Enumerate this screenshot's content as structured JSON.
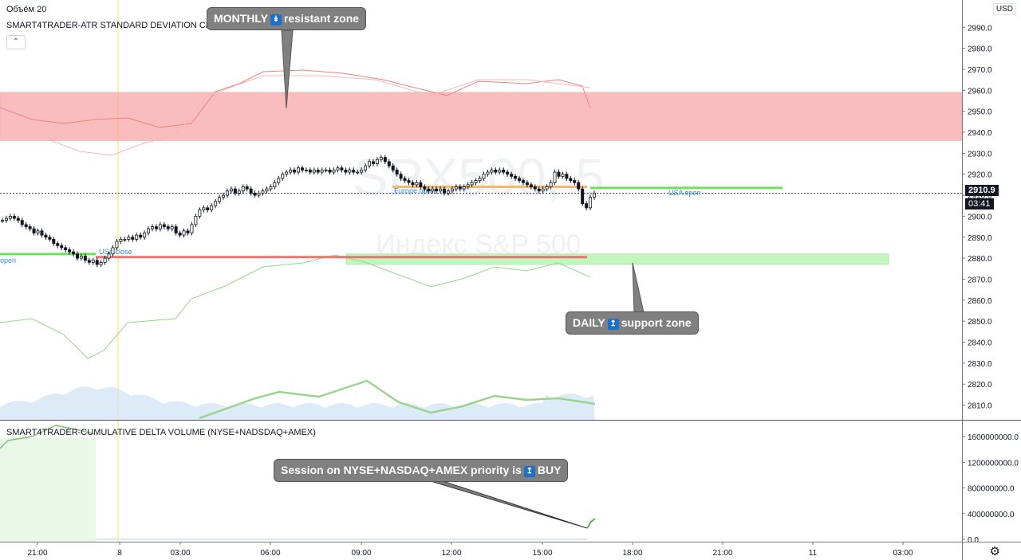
{
  "legend": {
    "volume": "Объём 20",
    "indicator": "SMART4TRADER-ATR STANDARD DEVIATION CHART v. 18 Day",
    "delta": "SMART4TRADER-CUMULATIVE DELTA VOLUME (NYSE+NADSDAQ+AMEX)"
  },
  "currency": "USD",
  "watermark": {
    "symbol": "SPX500, 5",
    "name": "Индекс S&P 500"
  },
  "last_price": {
    "value": "2910.9",
    "countdown": "03:41"
  },
  "callouts": {
    "monthly": {
      "pre": "MONTHLY",
      "arrow": "↡",
      "post": "resistant zone"
    },
    "daily": {
      "pre": "DAILY",
      "arrow": "↥",
      "post": "support zone"
    },
    "session": {
      "pre": "Session on NYSE+NASDAQ+AMEX priority is",
      "arrow": "↥",
      "post": "BUY"
    }
  },
  "level_labels": {
    "usa_open": "USA open",
    "usa_close": "USA close",
    "europe_open": "Europe open",
    "open_left": "open"
  },
  "colors": {
    "resistance_zone": "#f7a7a7",
    "support_zone": "#b9f4b4",
    "green_level": "#6ee05a",
    "red_level": "#ec7372",
    "orange_level": "#f5b969",
    "candle": "#131722",
    "session_line": "#ffe74a",
    "volume_fill": "#cfe3f5"
  },
  "chart_data": {
    "type": "candlestick",
    "price_axis": {
      "range": [
        2803,
        3003
      ],
      "ticks": [
        "2990.0",
        "2980.0",
        "2970.0",
        "2960.0",
        "2950.0",
        "2940.0",
        "2930.0",
        "2920.0",
        "2910.0",
        "2900.0",
        "2890.0",
        "2880.0",
        "2870.0",
        "2860.0",
        "2850.0",
        "2840.0",
        "2830.0",
        "2820.0",
        "2810.0"
      ]
    },
    "time_axis": {
      "ticks": [
        "21:00",
        "8",
        "03:00",
        "06:00",
        "09:00",
        "12:00",
        "15:00",
        "18:00",
        "21:00",
        "11",
        "03:00"
      ]
    },
    "zones": {
      "monthly_resistance": [
        2936,
        2959
      ],
      "daily_support": [
        2877,
        2882
      ]
    },
    "levels": {
      "usa_open": 2913.5,
      "usa_close": 2880.5,
      "europe_open": 2914,
      "last": 2910.9
    },
    "close_series": [
      2898,
      2899,
      2900,
      2899,
      2898,
      2896,
      2895,
      2894,
      2892,
      2893,
      2891,
      2890,
      2889,
      2887,
      2886,
      2885,
      2884,
      2883,
      2882,
      2880,
      2881,
      2879,
      2878,
      2879,
      2877,
      2878,
      2880,
      2882,
      2885,
      2888,
      2889,
      2889,
      2890,
      2889,
      2891,
      2890,
      2892,
      2894,
      2895,
      2894,
      2896,
      2895,
      2894,
      2895,
      2892,
      2891,
      2893,
      2892,
      2896,
      2900,
      2903,
      2904,
      2903,
      2905,
      2907,
      2909,
      2910,
      2912,
      2913,
      2911,
      2912,
      2914,
      2913,
      2911,
      2910,
      2911,
      2912,
      2913,
      2914,
      2916,
      2918,
      2920,
      2921,
      2922,
      2921,
      2923,
      2922,
      2922,
      2921,
      2922,
      2921,
      2922,
      2922,
      2921,
      2922,
      2923,
      2922,
      2921,
      2922,
      2921,
      2921,
      2922,
      2924,
      2926,
      2925,
      2927,
      2928,
      2926,
      2924,
      2922,
      2920,
      2918,
      2917,
      2916,
      2915,
      2916,
      2914,
      2913,
      2912,
      2913,
      2912,
      2913,
      2911,
      2912,
      2913,
      2914,
      2913,
      2914,
      2915,
      2916,
      2917,
      2918,
      2920,
      2921,
      2922,
      2921,
      2922,
      2921,
      2920,
      2919,
      2918,
      2917,
      2916,
      2915,
      2914,
      2913,
      2912,
      2913,
      2914,
      2916,
      2921,
      2919,
      2920,
      2918,
      2917,
      2916,
      2913,
      2906,
      2904,
      2909,
      2911
    ],
    "delta_axis": {
      "range": [
        0,
        1850000000
      ],
      "ticks": [
        "1600000000.0",
        "1200000000.0",
        "800000000.0",
        "400000000.0",
        "0.0"
      ]
    }
  }
}
